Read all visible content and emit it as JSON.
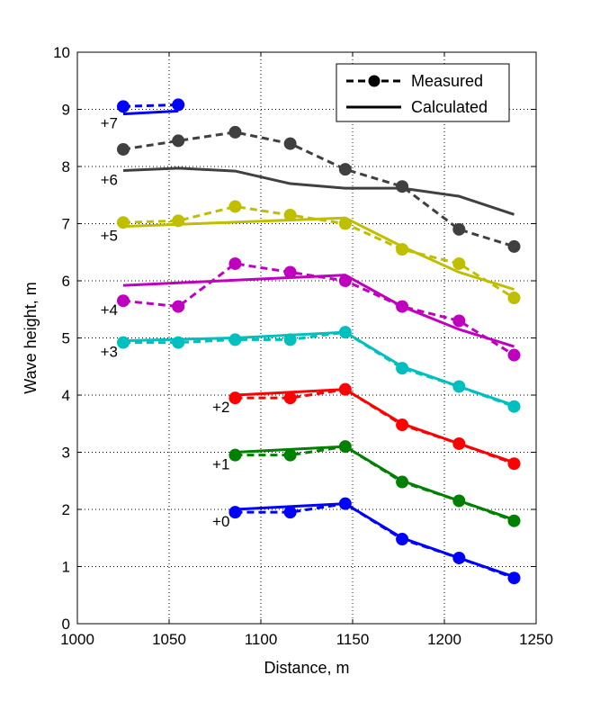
{
  "chart_data": {
    "type": "line",
    "xlabel": "Distance, m",
    "ylabel": "Wave height, m",
    "xlim": [
      1000,
      1250
    ],
    "ylim": [
      0,
      10
    ],
    "xticks": [
      1000,
      1050,
      1100,
      1150,
      1200,
      1250
    ],
    "yticks": [
      0,
      1,
      2,
      3,
      4,
      5,
      6,
      7,
      8,
      9,
      10
    ],
    "grid": true,
    "legend": {
      "placement": "top-right",
      "entries": [
        {
          "label": "Measured",
          "style": "dashed-with-markers"
        },
        {
          "label": "Calculated",
          "style": "solid"
        }
      ]
    },
    "series": [
      {
        "offset_label": "+0",
        "color": "#0000ff",
        "measured": {
          "x": [
            1086,
            1116,
            1146,
            1177,
            1208,
            1238
          ],
          "y": [
            1.95,
            1.95,
            2.1,
            1.48,
            1.15,
            0.8
          ]
        },
        "calculated": {
          "x": [
            1086,
            1146,
            1177,
            1208,
            1238
          ],
          "y": [
            2.0,
            2.1,
            1.5,
            1.15,
            0.82
          ]
        }
      },
      {
        "offset_label": "+1",
        "color": "#008000",
        "measured": {
          "x": [
            1086,
            1116,
            1146,
            1177,
            1208,
            1238
          ],
          "y": [
            2.95,
            2.95,
            3.1,
            2.48,
            2.15,
            1.8
          ]
        },
        "calculated": {
          "x": [
            1086,
            1146,
            1177,
            1208,
            1238
          ],
          "y": [
            3.0,
            3.1,
            2.5,
            2.15,
            1.82
          ]
        }
      },
      {
        "offset_label": "+2",
        "color": "#ff0000",
        "measured": {
          "x": [
            1086,
            1116,
            1146,
            1177,
            1208,
            1238
          ],
          "y": [
            3.95,
            3.95,
            4.1,
            3.48,
            3.15,
            2.8
          ]
        },
        "calculated": {
          "x": [
            1086,
            1146,
            1177,
            1208,
            1238
          ],
          "y": [
            4.0,
            4.1,
            3.5,
            3.15,
            2.82
          ]
        }
      },
      {
        "offset_label": "+3",
        "color": "#00bfbf",
        "measured": {
          "x": [
            1025,
            1055,
            1086,
            1116,
            1146,
            1177,
            1208,
            1238
          ],
          "y": [
            4.92,
            4.92,
            4.97,
            4.97,
            5.1,
            4.47,
            4.15,
            3.8
          ]
        },
        "calculated": {
          "x": [
            1025,
            1086,
            1146,
            1177,
            1208,
            1238
          ],
          "y": [
            4.95,
            5.0,
            5.1,
            4.5,
            4.15,
            3.82
          ]
        }
      },
      {
        "offset_label": "+4",
        "color": "#bf00bf",
        "measured": {
          "x": [
            1025,
            1055,
            1086,
            1116,
            1146,
            1177,
            1208,
            1238
          ],
          "y": [
            5.65,
            5.55,
            6.3,
            6.15,
            6.0,
            5.55,
            5.3,
            4.7
          ]
        },
        "calculated": {
          "x": [
            1025,
            1146,
            1177,
            1208,
            1238
          ],
          "y": [
            5.92,
            6.1,
            5.55,
            5.15,
            4.85
          ]
        }
      },
      {
        "offset_label": "+5",
        "color": "#bfbf00",
        "measured": {
          "x": [
            1025,
            1055,
            1086,
            1116,
            1146,
            1177,
            1208,
            1238
          ],
          "y": [
            7.02,
            7.05,
            7.3,
            7.15,
            7.0,
            6.55,
            6.3,
            5.7
          ]
        },
        "calculated": {
          "x": [
            1025,
            1146,
            1177,
            1208,
            1238
          ],
          "y": [
            6.95,
            7.1,
            6.6,
            6.15,
            5.85
          ]
        }
      },
      {
        "offset_label": "+6",
        "color": "#404040",
        "measured": {
          "x": [
            1025,
            1055,
            1086,
            1116,
            1146,
            1177,
            1208,
            1238
          ],
          "y": [
            8.3,
            8.45,
            8.6,
            8.4,
            7.95,
            7.65,
            6.9,
            6.6
          ]
        },
        "calculated": {
          "x": [
            1025,
            1055,
            1086,
            1116,
            1146,
            1177,
            1208,
            1238
          ],
          "y": [
            7.93,
            7.97,
            7.92,
            7.7,
            7.62,
            7.62,
            7.48,
            7.16
          ]
        }
      },
      {
        "offset_label": "+7",
        "color": "#0000ff",
        "measured": {
          "x": [
            1025,
            1055
          ],
          "y": [
            9.05,
            9.08
          ]
        },
        "calculated": {
          "x": [
            1025,
            1055
          ],
          "y": [
            8.92,
            8.97
          ]
        }
      }
    ]
  }
}
